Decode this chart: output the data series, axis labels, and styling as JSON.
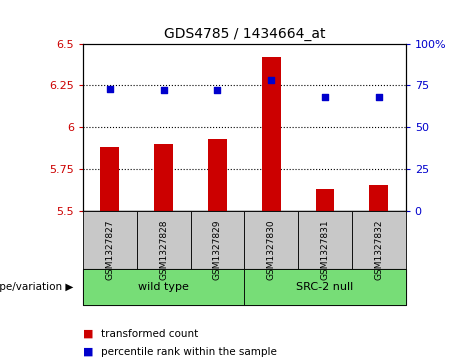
{
  "title": "GDS4785 / 1434664_at",
  "samples": [
    "GSM1327827",
    "GSM1327828",
    "GSM1327829",
    "GSM1327830",
    "GSM1327831",
    "GSM1327832"
  ],
  "bar_values": [
    5.88,
    5.9,
    5.93,
    6.42,
    5.63,
    5.65
  ],
  "percentile_values": [
    73,
    72,
    72,
    78,
    68,
    68
  ],
  "ylim_left": [
    5.5,
    6.5
  ],
  "ylim_right": [
    0,
    100
  ],
  "yticks_left": [
    5.5,
    5.75,
    6.0,
    6.25,
    6.5
  ],
  "yticks_right": [
    0,
    25,
    50,
    75,
    100
  ],
  "ytick_labels_left": [
    "5.5",
    "5.75",
    "6",
    "6.25",
    "6.5"
  ],
  "ytick_labels_right": [
    "0",
    "25",
    "50",
    "75",
    "100%"
  ],
  "hlines": [
    5.75,
    6.0,
    6.25
  ],
  "bar_color": "#cc0000",
  "dot_color": "#0000cc",
  "groups": [
    {
      "label": "wild type",
      "indices": [
        0,
        1,
        2
      ]
    },
    {
      "label": "SRC-2 null",
      "indices": [
        3,
        4,
        5
      ]
    }
  ],
  "group_bg_color": "#c8c8c8",
  "group_label_color": "#77dd77",
  "legend_items": [
    {
      "color": "#cc0000",
      "label": "transformed count"
    },
    {
      "color": "#0000cc",
      "label": "percentile rank within the sample"
    }
  ],
  "genotype_label": "genotype/variation",
  "ylabel_left_color": "#cc0000",
  "ylabel_right_color": "#0000cc",
  "bar_width": 0.35
}
